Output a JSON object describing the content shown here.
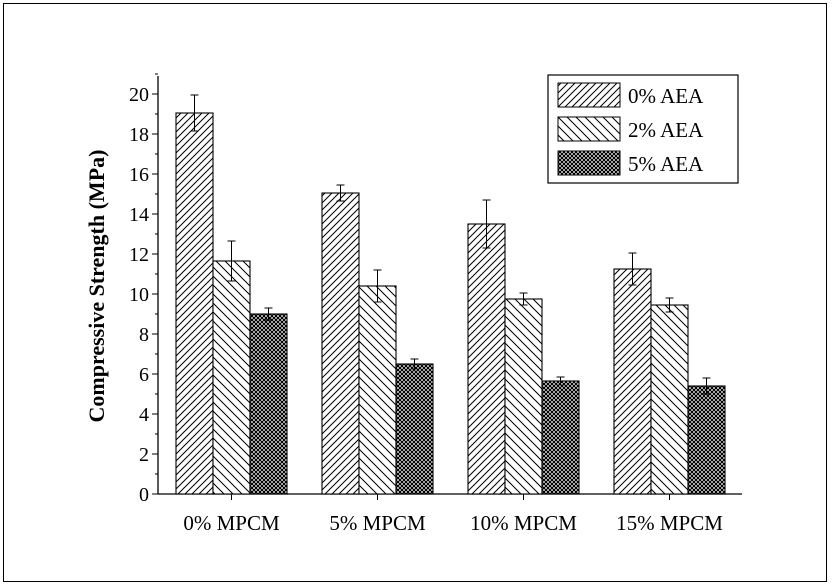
{
  "chart_data": {
    "type": "bar",
    "ylabel": "Compressive Strength (MPa)",
    "xlabel": "",
    "ylim": [
      0,
      21
    ],
    "yticks": [
      0,
      2,
      4,
      6,
      8,
      10,
      12,
      14,
      16,
      18,
      20
    ],
    "categories": [
      "0% MPCM",
      "5% MPCM",
      "10% MPCM",
      "15% MPCM"
    ],
    "series": [
      {
        "name": "0% AEA",
        "pattern": "forward-hatch",
        "values": [
          19.05,
          15.05,
          13.5,
          11.25
        ],
        "errors": [
          0.9,
          0.4,
          1.2,
          0.8
        ]
      },
      {
        "name": "2% AEA",
        "pattern": "back-hatch",
        "values": [
          11.65,
          10.4,
          9.75,
          9.45
        ],
        "errors": [
          1.0,
          0.8,
          0.3,
          0.35
        ]
      },
      {
        "name": "5% AEA",
        "pattern": "crosshatch",
        "values": [
          9.0,
          6.5,
          5.65,
          5.4
        ],
        "errors": [
          0.3,
          0.25,
          0.2,
          0.4
        ]
      }
    ],
    "legend_position": "top-right",
    "grid": false,
    "colors": {
      "bar_fill": "#ffffff",
      "stroke": "#000000"
    }
  }
}
